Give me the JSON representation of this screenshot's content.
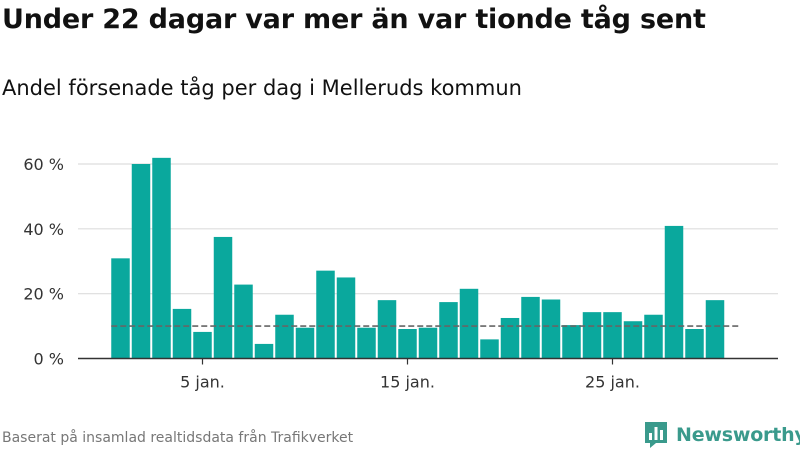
{
  "title": "Under 22 dagar var mer än var tionde tåg sent",
  "subtitle": "Andel försenade tåg per dag i Melleruds kommun",
  "source": "Baserat på insamlad realtidsdata från Trafikverket",
  "brand": {
    "name": "Newsworthy",
    "color": "#3a9a8c"
  },
  "colors": {
    "bar": "#0aa89d",
    "reference_line": "#666666",
    "grid": "#dddddd",
    "axis": "#333333"
  },
  "chart_data": {
    "type": "bar",
    "title": "Under 22 dagar var mer än var tionde tåg sent",
    "subtitle": "Andel försenade tåg per dag i Melleruds kommun",
    "x_unit": "day of January",
    "x": [
      1,
      2,
      3,
      4,
      5,
      6,
      7,
      8,
      9,
      10,
      11,
      12,
      13,
      14,
      15,
      16,
      17,
      18,
      19,
      20,
      21,
      22,
      23,
      24,
      25,
      26,
      27,
      28,
      29,
      30
    ],
    "values": [
      30.9,
      60,
      61.9,
      15.3,
      8.2,
      37.5,
      22.8,
      4.5,
      13.5,
      9.5,
      27.1,
      25,
      9.5,
      18,
      9.1,
      9.5,
      17.4,
      21.5,
      5.9,
      12.5,
      19,
      18.2,
      10.3,
      14.3,
      14.3,
      11.5,
      13.5,
      40.9,
      9.1,
      18
    ],
    "reference_line": 10,
    "ylim": [
      0,
      65
    ],
    "y_ticks": [
      0,
      20,
      40,
      60
    ],
    "y_tick_labels": [
      "0 %",
      "20 %",
      "40 %",
      "60 %"
    ],
    "x_ticks": [
      5,
      15,
      25
    ],
    "x_tick_labels": [
      "5 jan.",
      "15 jan.",
      "25 jan."
    ],
    "grid": "horizontal",
    "legend": "none"
  }
}
